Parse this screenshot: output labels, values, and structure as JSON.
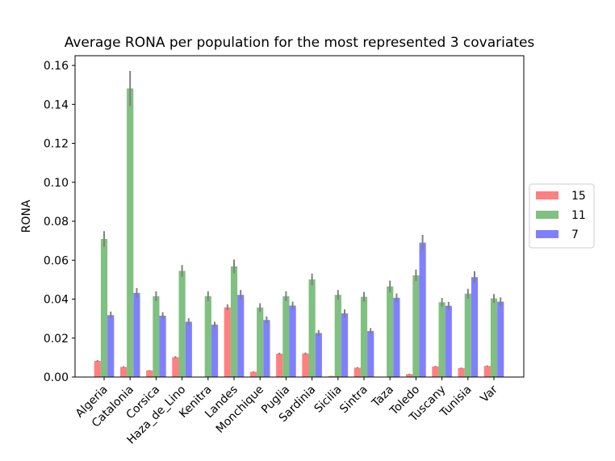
{
  "chart_data": {
    "type": "bar",
    "title": "Average RONA per population for the most represented 3 covariates",
    "xlabel": "",
    "ylabel": "RONA",
    "ylim": [
      0,
      0.165
    ],
    "yticks": [
      "0.00",
      "0.02",
      "0.04",
      "0.06",
      "0.08",
      "0.10",
      "0.12",
      "0.14",
      "0.16"
    ],
    "categories": [
      "Algeria",
      "Catalonia",
      "Corsica",
      "Haza_de_Lino",
      "Kenitra",
      "Landes",
      "Monchique",
      "Puglia",
      "Sardinia",
      "Sicilia",
      "Sintra",
      "Taza",
      "Toledo",
      "Tuscany",
      "Tunisia",
      "Var"
    ],
    "series": [
      {
        "name": "15",
        "color": "#ff8080",
        "values": [
          0.0083,
          0.0052,
          0.0034,
          0.0102,
          0.0,
          0.0358,
          0.0027,
          0.012,
          0.0121,
          0.0005,
          0.0048,
          0.0,
          0.0015,
          0.0054,
          0.0046,
          0.0057
        ],
        "errors": [
          0.0004,
          0.0003,
          0.0002,
          0.0005,
          0.0,
          0.0015,
          0.0002,
          0.0005,
          0.0005,
          0.0001,
          0.0003,
          0.0,
          0.0002,
          0.0003,
          0.0003,
          0.0003
        ]
      },
      {
        "name": "11",
        "color": "#80c080",
        "values": [
          0.0709,
          0.1482,
          0.0415,
          0.0545,
          0.0415,
          0.0568,
          0.0357,
          0.0415,
          0.0501,
          0.0422,
          0.0412,
          0.0465,
          0.0522,
          0.0384,
          0.0428,
          0.0404
        ],
        "errors": [
          0.004,
          0.009,
          0.0025,
          0.003,
          0.0025,
          0.0035,
          0.0022,
          0.0025,
          0.003,
          0.0025,
          0.0025,
          0.003,
          0.003,
          0.0022,
          0.0025,
          0.0022
        ]
      },
      {
        "name": "7",
        "color": "#8080ff",
        "values": [
          0.0318,
          0.0432,
          0.0315,
          0.0284,
          0.0269,
          0.0422,
          0.0293,
          0.0367,
          0.0226,
          0.0327,
          0.0236,
          0.0407,
          0.069,
          0.0366,
          0.0513,
          0.0387
        ],
        "errors": [
          0.0018,
          0.0025,
          0.0018,
          0.0018,
          0.0015,
          0.0025,
          0.0018,
          0.002,
          0.0015,
          0.002,
          0.0015,
          0.0022,
          0.004,
          0.002,
          0.003,
          0.0022
        ]
      }
    ],
    "legend_position": "center-right",
    "grid": false
  }
}
